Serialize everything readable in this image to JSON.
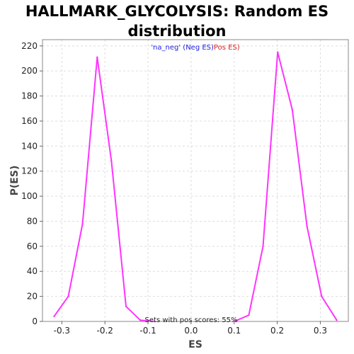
{
  "chart_data": {
    "type": "line",
    "title_line1": "HALLMARK_GLYCOLYSIS: Random ES",
    "title_line2": "distribution",
    "xlabel": "ES",
    "ylabel": "P(ES)",
    "xlim": [
      -0.345,
      0.365
    ],
    "ylim": [
      0,
      225
    ],
    "xticks": [
      -0.3,
      -0.2,
      -0.1,
      0.0,
      0.1,
      0.2,
      0.3
    ],
    "xtick_labels": [
      "-0.3",
      "-0.2",
      "-0.1",
      "0.0",
      "0.1",
      "0.2",
      "0.3"
    ],
    "yticks": [
      0,
      20,
      40,
      60,
      80,
      100,
      120,
      140,
      160,
      180,
      200,
      220
    ],
    "ytick_labels": [
      "0",
      "20",
      "40",
      "60",
      "80",
      "100",
      "120",
      "140",
      "160",
      "180",
      "200",
      "220"
    ],
    "grid": true,
    "legend": {
      "placement": "top-center",
      "part1": "'na_neg' (Neg ES)",
      "part2": "Pos ES)",
      "color1": "#2222dd",
      "color2": "#dd2222"
    },
    "annotation": "Sets with pos scores: 55%",
    "series_color": "#ff33ff",
    "series": [
      {
        "x": [
          -0.318,
          -0.285,
          -0.252,
          -0.218,
          -0.185,
          -0.151,
          -0.118,
          -0.085
        ],
        "y": [
          4,
          20,
          78,
          211,
          128,
          12,
          1,
          0
        ]
      },
      {
        "x": [
          0.1,
          0.134,
          0.167,
          0.201,
          0.235,
          0.269,
          0.303,
          0.338
        ],
        "y": [
          0,
          5,
          60,
          215,
          169,
          76,
          20,
          1
        ]
      }
    ]
  }
}
